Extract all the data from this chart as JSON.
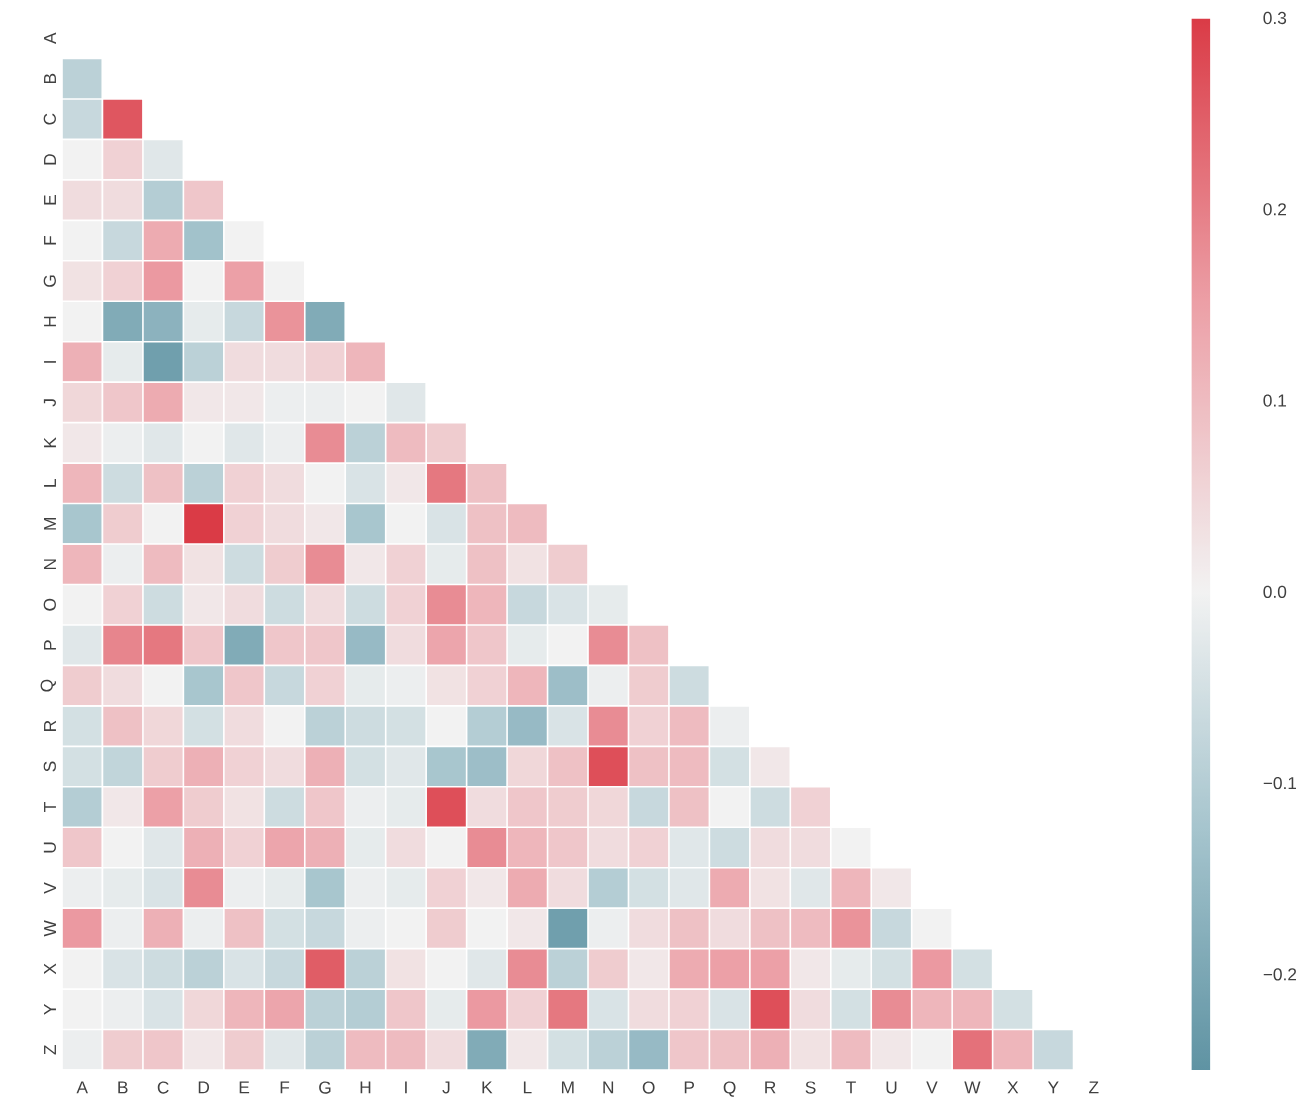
{
  "chart_data": {
    "type": "heatmap",
    "categories": [
      "A",
      "B",
      "C",
      "D",
      "E",
      "F",
      "G",
      "H",
      "I",
      "J",
      "K",
      "L",
      "M",
      "N",
      "O",
      "P",
      "Q",
      "R",
      "S",
      "T",
      "U",
      "V",
      "W",
      "X",
      "Y",
      "Z"
    ],
    "y_categories": [
      "A",
      "B",
      "C",
      "D",
      "E",
      "F",
      "G",
      "H",
      "I",
      "J",
      "K",
      "L",
      "M",
      "N",
      "O",
      "P",
      "Q",
      "R",
      "S",
      "T",
      "U",
      "V",
      "W",
      "X",
      "Y",
      "Z"
    ],
    "cells": [
      [
        null,
        null,
        null,
        null,
        null,
        null,
        null,
        null,
        null,
        null,
        null,
        null,
        null,
        null,
        null,
        null,
        null,
        null,
        null,
        null,
        null,
        null,
        null,
        null,
        null,
        null
      ],
      [
        -0.09,
        null,
        null,
        null,
        null,
        null,
        null,
        null,
        null,
        null,
        null,
        null,
        null,
        null,
        null,
        null,
        null,
        null,
        null,
        null,
        null,
        null,
        null,
        null,
        null,
        null
      ],
      [
        -0.07,
        0.26,
        null,
        null,
        null,
        null,
        null,
        null,
        null,
        null,
        null,
        null,
        null,
        null,
        null,
        null,
        null,
        null,
        null,
        null,
        null,
        null,
        null,
        null,
        null,
        null
      ],
      [
        0.0,
        0.06,
        -0.03,
        null,
        null,
        null,
        null,
        null,
        null,
        null,
        null,
        null,
        null,
        null,
        null,
        null,
        null,
        null,
        null,
        null,
        null,
        null,
        null,
        null,
        null,
        null
      ],
      [
        0.04,
        0.04,
        -0.1,
        0.08,
        null,
        null,
        null,
        null,
        null,
        null,
        null,
        null,
        null,
        null,
        null,
        null,
        null,
        null,
        null,
        null,
        null,
        null,
        null,
        null,
        null,
        null
      ],
      [
        0.0,
        -0.07,
        0.13,
        -0.13,
        0.0,
        null,
        null,
        null,
        null,
        null,
        null,
        null,
        null,
        null,
        null,
        null,
        null,
        null,
        null,
        null,
        null,
        null,
        null,
        null,
        null,
        null
      ],
      [
        0.03,
        0.06,
        0.16,
        0.0,
        0.15,
        0.0,
        null,
        null,
        null,
        null,
        null,
        null,
        null,
        null,
        null,
        null,
        null,
        null,
        null,
        null,
        null,
        null,
        null,
        null,
        null,
        null
      ],
      [
        0.0,
        -0.19,
        -0.17,
        -0.02,
        -0.07,
        0.17,
        -0.19,
        null,
        null,
        null,
        null,
        null,
        null,
        null,
        null,
        null,
        null,
        null,
        null,
        null,
        null,
        null,
        null,
        null,
        null,
        null
      ],
      [
        0.12,
        -0.02,
        -0.22,
        -0.09,
        0.04,
        0.04,
        0.06,
        0.11,
        null,
        null,
        null,
        null,
        null,
        null,
        null,
        null,
        null,
        null,
        null,
        null,
        null,
        null,
        null,
        null,
        null,
        null
      ],
      [
        0.05,
        0.08,
        0.13,
        0.02,
        0.02,
        -0.01,
        -0.01,
        0.0,
        -0.03,
        null,
        null,
        null,
        null,
        null,
        null,
        null,
        null,
        null,
        null,
        null,
        null,
        null,
        null,
        null,
        null,
        null
      ],
      [
        0.02,
        -0.01,
        -0.03,
        0.0,
        -0.03,
        -0.01,
        0.18,
        -0.09,
        0.1,
        0.07,
        null,
        null,
        null,
        null,
        null,
        null,
        null,
        null,
        null,
        null,
        null,
        null,
        null,
        null,
        null,
        null
      ],
      [
        0.11,
        -0.06,
        0.09,
        -0.09,
        0.06,
        0.04,
        0.0,
        -0.04,
        0.02,
        0.21,
        0.09,
        null,
        null,
        null,
        null,
        null,
        null,
        null,
        null,
        null,
        null,
        null,
        null,
        null,
        null,
        null
      ],
      [
        -0.12,
        0.07,
        0.0,
        0.3,
        0.06,
        0.04,
        0.02,
        -0.12,
        0.0,
        -0.04,
        0.09,
        0.1,
        null,
        null,
        null,
        null,
        null,
        null,
        null,
        null,
        null,
        null,
        null,
        null,
        null,
        null
      ],
      [
        0.11,
        -0.01,
        0.1,
        0.03,
        -0.06,
        0.07,
        0.18,
        0.02,
        0.06,
        -0.02,
        0.09,
        0.03,
        0.07,
        null,
        null,
        null,
        null,
        null,
        null,
        null,
        null,
        null,
        null,
        null,
        null,
        null
      ],
      [
        0.0,
        0.06,
        -0.06,
        0.02,
        0.04,
        -0.06,
        0.04,
        -0.06,
        0.06,
        0.18,
        0.11,
        -0.07,
        -0.04,
        -0.02,
        null,
        null,
        null,
        null,
        null,
        null,
        null,
        null,
        null,
        null,
        null,
        null
      ],
      [
        -0.03,
        0.19,
        0.21,
        0.08,
        -0.19,
        0.08,
        0.08,
        -0.15,
        0.04,
        0.14,
        0.08,
        -0.02,
        0.0,
        0.18,
        0.09,
        null,
        null,
        null,
        null,
        null,
        null,
        null,
        null,
        null,
        null,
        null
      ],
      [
        0.07,
        0.04,
        0.0,
        -0.12,
        0.08,
        -0.07,
        0.06,
        -0.02,
        -0.01,
        0.03,
        0.06,
        0.11,
        -0.14,
        -0.01,
        0.07,
        -0.06,
        null,
        null,
        null,
        null,
        null,
        null,
        null,
        null,
        null,
        null
      ],
      [
        -0.05,
        0.09,
        0.05,
        -0.05,
        0.04,
        0.0,
        -0.09,
        -0.06,
        -0.05,
        0.0,
        -0.1,
        -0.15,
        -0.04,
        0.18,
        0.06,
        0.1,
        -0.01,
        null,
        null,
        null,
        null,
        null,
        null,
        null,
        null,
        null
      ],
      [
        -0.05,
        -0.08,
        0.07,
        0.12,
        0.06,
        0.04,
        0.12,
        -0.05,
        -0.03,
        -0.12,
        -0.14,
        0.05,
        0.09,
        0.27,
        0.09,
        0.1,
        -0.05,
        0.02,
        null,
        null,
        null,
        null,
        null,
        null,
        null,
        null
      ],
      [
        -0.1,
        0.02,
        0.15,
        0.07,
        0.03,
        -0.06,
        0.08,
        -0.01,
        -0.02,
        0.27,
        0.04,
        0.08,
        0.07,
        0.05,
        -0.07,
        0.09,
        0.0,
        -0.06,
        0.06,
        null,
        null,
        null,
        null,
        null,
        null,
        null
      ],
      [
        0.08,
        0.0,
        -0.03,
        0.12,
        0.06,
        0.14,
        0.12,
        -0.02,
        0.04,
        0.0,
        0.18,
        0.11,
        0.08,
        0.04,
        0.06,
        -0.03,
        -0.06,
        0.04,
        0.04,
        0.0,
        null,
        null,
        null,
        null,
        null,
        null
      ],
      [
        -0.01,
        -0.02,
        -0.04,
        0.18,
        -0.01,
        -0.02,
        -0.12,
        -0.01,
        -0.02,
        0.06,
        0.02,
        0.13,
        0.04,
        -0.1,
        -0.05,
        -0.03,
        0.13,
        0.03,
        -0.03,
        0.11,
        0.02,
        null,
        null,
        null,
        null,
        null
      ],
      [
        0.16,
        -0.01,
        0.12,
        -0.01,
        0.09,
        -0.05,
        -0.07,
        -0.01,
        0.0,
        0.07,
        0.0,
        0.02,
        -0.22,
        -0.01,
        0.04,
        0.09,
        0.04,
        0.09,
        0.1,
        0.17,
        -0.07,
        0.0,
        null,
        null,
        null,
        null
      ],
      [
        0.0,
        -0.04,
        -0.06,
        -0.09,
        -0.04,
        -0.07,
        0.25,
        -0.09,
        0.03,
        0.0,
        -0.03,
        0.18,
        -0.09,
        0.07,
        0.02,
        0.13,
        0.15,
        0.15,
        0.02,
        -0.02,
        -0.05,
        0.16,
        -0.05,
        null,
        null,
        null
      ],
      [
        0.0,
        -0.01,
        -0.04,
        0.05,
        0.11,
        0.14,
        -0.09,
        -0.1,
        0.08,
        -0.02,
        0.16,
        0.06,
        0.21,
        -0.04,
        0.04,
        0.06,
        -0.04,
        0.27,
        0.04,
        -0.05,
        0.18,
        0.11,
        0.11,
        -0.05,
        null,
        null
      ],
      [
        -0.01,
        0.07,
        0.08,
        0.02,
        0.07,
        -0.03,
        -0.09,
        0.1,
        0.1,
        0.04,
        -0.19,
        0.02,
        -0.05,
        -0.09,
        -0.15,
        0.08,
        0.09,
        0.12,
        0.03,
        0.1,
        0.02,
        0.0,
        0.22,
        0.11,
        -0.07,
        null
      ]
    ],
    "clim": [
      -0.25,
      0.3
    ],
    "cticks": [
      {
        "value": -0.2,
        "label": "−0.2"
      },
      {
        "value": -0.1,
        "label": "−0.1"
      },
      {
        "value": 0,
        "label": "0.0"
      },
      {
        "value": 0.1,
        "label": "0.1"
      },
      {
        "value": 0.2,
        "label": "0.2"
      },
      {
        "value": 0.3,
        "label": "0.3"
      }
    ]
  }
}
